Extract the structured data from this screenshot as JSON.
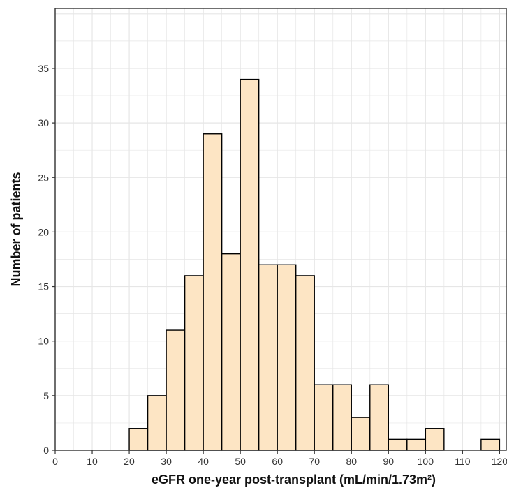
{
  "chart_data": {
    "type": "bar",
    "title": "",
    "xlabel": "eGFR one-year post-transplant (mL/min/1.73m²)",
    "ylabel": "Number of patients",
    "bin_width": 5,
    "bins": [
      {
        "x0": 20,
        "x1": 25,
        "count": 2
      },
      {
        "x0": 25,
        "x1": 30,
        "count": 5
      },
      {
        "x0": 30,
        "x1": 35,
        "count": 11
      },
      {
        "x0": 35,
        "x1": 40,
        "count": 16
      },
      {
        "x0": 40,
        "x1": 45,
        "count": 29
      },
      {
        "x0": 45,
        "x1": 50,
        "count": 18
      },
      {
        "x0": 50,
        "x1": 55,
        "count": 34
      },
      {
        "x0": 55,
        "x1": 60,
        "count": 17
      },
      {
        "x0": 60,
        "x1": 65,
        "count": 17
      },
      {
        "x0": 65,
        "x1": 70,
        "count": 16
      },
      {
        "x0": 70,
        "x1": 75,
        "count": 6
      },
      {
        "x0": 75,
        "x1": 80,
        "count": 6
      },
      {
        "x0": 80,
        "x1": 85,
        "count": 3
      },
      {
        "x0": 85,
        "x1": 90,
        "count": 6
      },
      {
        "x0": 90,
        "x1": 95,
        "count": 1
      },
      {
        "x0": 95,
        "x1": 100,
        "count": 1
      },
      {
        "x0": 100,
        "x1": 105,
        "count": 2
      },
      {
        "x0": 115,
        "x1": 120,
        "count": 1
      }
    ],
    "xlim": [
      0,
      122
    ],
    "ylim": [
      0,
      40.5
    ],
    "xticks": [
      0,
      10,
      20,
      30,
      40,
      50,
      60,
      70,
      80,
      90,
      100,
      110,
      120
    ],
    "yticks": [
      0,
      5,
      10,
      15,
      20,
      25,
      30,
      35
    ],
    "grid": true,
    "colors": {
      "bar_fill": "#fde5c4",
      "bar_stroke": "#000000",
      "grid": "#e6e6e6",
      "panel_border": "#333333"
    }
  }
}
